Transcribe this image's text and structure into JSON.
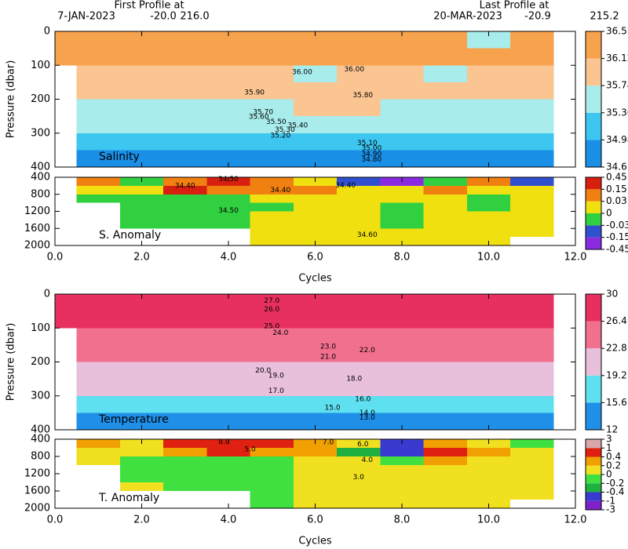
{
  "header": {
    "first": {
      "title": "First Profile at",
      "date": "7-JAN-2023",
      "lat": "-20.0",
      "lon": "216.0"
    },
    "last": {
      "title": "Last Profile at",
      "date": "20-MAR-2023",
      "lat": "-20.9",
      "lon": "215.2"
    }
  },
  "chart_data": [
    {
      "type": "heatmap",
      "label": "Salinity",
      "ylabel": "Pressure (dbar)",
      "y_inverted": true,
      "x": [
        0,
        1,
        2,
        3,
        4,
        5,
        6,
        7,
        8,
        9,
        10,
        11
      ],
      "xlim": [
        0,
        12
      ],
      "xticks": [
        0,
        2,
        4,
        6,
        8,
        10,
        12
      ],
      "ylim": [
        0,
        400
      ],
      "yticks": [
        0,
        100,
        200,
        300,
        400
      ],
      "y_edges": [
        0,
        50,
        100,
        150,
        200,
        250,
        300,
        350,
        400
      ],
      "values": [
        [
          36.3,
          36.3,
          36.25,
          36.3,
          36.3,
          36.3,
          36.2,
          36.35,
          36.3,
          36.2,
          35.7,
          36.3
        ],
        [
          36.2,
          36.2,
          36.2,
          36.25,
          36.2,
          36.2,
          36.15,
          36.2,
          36.2,
          36.2,
          36.2,
          36.2
        ],
        [
          null,
          36.1,
          36.05,
          36.05,
          36.1,
          36.0,
          35.7,
          36.0,
          36.0,
          35.7,
          36.0,
          36.0
        ],
        [
          null,
          36.0,
          36.0,
          36.0,
          35.95,
          35.95,
          36.0,
          36.0,
          35.95,
          36.0,
          35.95,
          35.95
        ],
        [
          null,
          35.7,
          35.7,
          35.7,
          35.7,
          35.7,
          35.8,
          35.8,
          35.7,
          35.7,
          35.7,
          35.7
        ],
        [
          null,
          35.5,
          35.5,
          35.5,
          35.5,
          35.5,
          35.5,
          35.5,
          35.5,
          35.5,
          35.5,
          35.5
        ],
        [
          null,
          35.2,
          35.2,
          35.2,
          35.2,
          35.2,
          35.2,
          35.2,
          35.2,
          35.2,
          35.2,
          35.2
        ],
        [
          null,
          34.95,
          34.95,
          34.95,
          34.95,
          34.95,
          34.95,
          34.95,
          34.95,
          34.95,
          34.95,
          34.95
        ]
      ],
      "colorbar": {
        "levels": [
          34.6,
          34.98,
          35.36,
          35.74,
          36.12,
          36.5
        ],
        "colors": [
          "#1a8fe6",
          "#3cc6f0",
          "#a8ecec",
          "#fbc592",
          "#f7a24c"
        ]
      },
      "contour_labels": [
        {
          "label": "36.00",
          "x": 5.7,
          "y": 120
        },
        {
          "label": "36.00",
          "x": 6.9,
          "y": 112
        },
        {
          "label": "35.90",
          "x": 4.6,
          "y": 180
        },
        {
          "label": "35.80",
          "x": 7.1,
          "y": 188
        },
        {
          "label": "35.70",
          "x": 4.8,
          "y": 238
        },
        {
          "label": "35.60",
          "x": 4.7,
          "y": 252
        },
        {
          "label": "35.50",
          "x": 5.1,
          "y": 267
        },
        {
          "label": "35.40",
          "x": 5.6,
          "y": 277
        },
        {
          "label": "35.30",
          "x": 5.3,
          "y": 290
        },
        {
          "label": "35.20",
          "x": 5.2,
          "y": 307
        },
        {
          "label": "35.10",
          "x": 7.2,
          "y": 330
        },
        {
          "label": "35.00",
          "x": 7.3,
          "y": 345
        },
        {
          "label": "34.90",
          "x": 7.3,
          "y": 362
        },
        {
          "label": "34.80",
          "x": 7.3,
          "y": 378
        }
      ]
    },
    {
      "type": "heatmap",
      "label": "S. Anomaly",
      "xlabel": "Cycles",
      "y_inverted": true,
      "x": [
        0,
        1,
        2,
        3,
        4,
        5,
        6,
        7,
        8,
        9,
        10,
        11
      ],
      "xlim": [
        0,
        12
      ],
      "xticks": [
        {
          "value": 0,
          "label": "0.0"
        },
        {
          "value": 2,
          "label": "2.0"
        },
        {
          "value": 4,
          "label": "4.0"
        },
        {
          "value": 6,
          "label": "6.0"
        },
        {
          "value": 8,
          "label": "8.0"
        },
        {
          "value": 10,
          "label": "10.0"
        },
        {
          "value": 12,
          "label": "12.0"
        }
      ],
      "ylim": [
        400,
        2000
      ],
      "yticks": [
        400,
        800,
        1200,
        1600,
        2000
      ],
      "y_edges": [
        400,
        600,
        800,
        1000,
        1200,
        1400,
        1600,
        1800,
        2000
      ],
      "values": [
        [
          null,
          0.05,
          -0.02,
          0.1,
          0.2,
          0.05,
          0.01,
          -0.1,
          -0.2,
          -0.02,
          0.05,
          -0.05
        ],
        [
          null,
          0.02,
          0.02,
          0.2,
          0.1,
          0.05,
          0.1,
          0.02,
          0.01,
          0.05,
          0.02,
          0.01
        ],
        [
          null,
          -0.02,
          -0.02,
          -0.02,
          -0.01,
          0.01,
          0.01,
          0.01,
          0.01,
          0.01,
          -0.01,
          0.01
        ],
        [
          null,
          null,
          -0.02,
          -0.02,
          -0.02,
          -0.01,
          0.01,
          0.01,
          -0.01,
          0.01,
          -0.01,
          0.01
        ],
        [
          null,
          null,
          -0.02,
          -0.02,
          -0.01,
          0.01,
          0.01,
          0.01,
          -0.01,
          0.01,
          0.01,
          0.01
        ],
        [
          null,
          null,
          -0.01,
          -0.02,
          -0.02,
          0.01,
          0.01,
          0.01,
          -0.01,
          0.01,
          0.01,
          0.01
        ],
        [
          null,
          null,
          null,
          null,
          null,
          0.01,
          0.01,
          0.01,
          0.01,
          0.01,
          0.01,
          0.01
        ],
        [
          null,
          null,
          null,
          null,
          null,
          0.01,
          0.01,
          0.01,
          0.01,
          0.01,
          0.01,
          null
        ]
      ],
      "colorbar": {
        "levels": [
          -0.45,
          -0.15,
          -0.03,
          0,
          0.03,
          0.15,
          0.45
        ],
        "colors": [
          "#8a2be2",
          "#3050d0",
          "#30d040",
          "#f0e010",
          "#f08010",
          "#d82010"
        ]
      },
      "contour_labels": [
        {
          "label": "34.50",
          "x": 4.0,
          "y": 450
        },
        {
          "label": "34.40",
          "x": 3.0,
          "y": 600
        },
        {
          "label": "34.40",
          "x": 5.2,
          "y": 700
        },
        {
          "label": "34.40",
          "x": 6.7,
          "y": 590
        },
        {
          "label": "34.50",
          "x": 4.0,
          "y": 1180
        },
        {
          "label": "34.60",
          "x": 7.2,
          "y": 1750
        }
      ]
    },
    {
      "type": "heatmap",
      "label": "Temperature",
      "ylabel": "Pressure (dbar)",
      "y_inverted": true,
      "x": [
        0,
        1,
        2,
        3,
        4,
        5,
        6,
        7,
        8,
        9,
        10,
        11
      ],
      "xlim": [
        0,
        12
      ],
      "xticks": [
        0,
        2,
        4,
        6,
        8,
        10,
        12
      ],
      "ylim": [
        0,
        400
      ],
      "yticks": [
        0,
        100,
        200,
        300,
        400
      ],
      "y_edges": [
        0,
        50,
        100,
        150,
        200,
        250,
        300,
        350,
        400
      ],
      "values": [
        [
          28.5,
          28,
          28,
          28,
          28,
          28,
          28,
          28.5,
          28.5,
          28.5,
          28,
          28.5
        ],
        [
          27,
          27,
          27,
          27,
          27,
          27,
          27,
          27,
          27,
          27,
          27,
          27
        ],
        [
          null,
          25.5,
          25.5,
          25.5,
          25.5,
          25,
          25,
          25.5,
          25.5,
          25,
          25,
          25
        ],
        [
          null,
          23.5,
          23.5,
          23.5,
          23.5,
          23,
          23,
          23.5,
          23.5,
          23.5,
          23,
          23.5
        ],
        [
          null,
          21,
          21,
          21,
          21,
          21,
          21,
          21,
          21,
          21,
          21,
          21
        ],
        [
          null,
          19.5,
          19.5,
          19.5,
          19.5,
          19.5,
          19.5,
          19.5,
          19.5,
          19.5,
          19.5,
          19.5
        ],
        [
          null,
          17,
          17,
          17,
          17,
          17,
          17,
          17,
          17,
          17,
          17,
          17
        ],
        [
          null,
          14.5,
          14.5,
          14.5,
          14.5,
          14.5,
          14.5,
          14.5,
          14.5,
          14.5,
          14.5,
          14.5
        ]
      ],
      "colorbar": {
        "levels": [
          12,
          15.6,
          19.2,
          22.8,
          26.4,
          30
        ],
        "colors": [
          "#1f8fe8",
          "#5ee0f0",
          "#e8c0dc",
          "#f0708e",
          "#e83060"
        ]
      },
      "contour_labels": [
        {
          "label": "27.0",
          "x": 5.0,
          "y": 20
        },
        {
          "label": "26.0",
          "x": 5.0,
          "y": 45
        },
        {
          "label": "25.0",
          "x": 5.0,
          "y": 95
        },
        {
          "label": "24.0",
          "x": 5.2,
          "y": 115
        },
        {
          "label": "23.0",
          "x": 6.3,
          "y": 155
        },
        {
          "label": "22.0",
          "x": 7.2,
          "y": 165
        },
        {
          "label": "21.0",
          "x": 6.3,
          "y": 185
        },
        {
          "label": "20.0",
          "x": 4.8,
          "y": 225
        },
        {
          "label": "19.0",
          "x": 5.1,
          "y": 240
        },
        {
          "label": "18.0",
          "x": 6.9,
          "y": 250
        },
        {
          "label": "17.0",
          "x": 5.1,
          "y": 285
        },
        {
          "label": "16.0",
          "x": 7.1,
          "y": 310
        },
        {
          "label": "15.0",
          "x": 6.4,
          "y": 335
        },
        {
          "label": "14.0",
          "x": 7.2,
          "y": 350
        },
        {
          "label": "13.0",
          "x": 7.2,
          "y": 364
        }
      ]
    },
    {
      "type": "heatmap",
      "label": "T. Anomaly",
      "xlabel": "Cycles",
      "y_inverted": true,
      "x": [
        0,
        1,
        2,
        3,
        4,
        5,
        6,
        7,
        8,
        9,
        10,
        11
      ],
      "xlim": [
        0,
        12
      ],
      "xticks": [
        {
          "value": 0,
          "label": "0.0"
        },
        {
          "value": 2,
          "label": "2.0"
        },
        {
          "value": 4,
          "label": "4.0"
        },
        {
          "value": 6,
          "label": "6.0"
        },
        {
          "value": 8,
          "label": "8.0"
        },
        {
          "value": 10,
          "label": "10.0"
        },
        {
          "value": 12,
          "label": "12.0"
        }
      ],
      "ylim": [
        400,
        2000
      ],
      "yticks": [
        400,
        800,
        1200,
        1600,
        2000
      ],
      "y_edges": [
        400,
        600,
        800,
        1000,
        1200,
        1400,
        1600,
        1800,
        2000
      ],
      "values": [
        [
          null,
          0.3,
          0.1,
          0.6,
          0.8,
          0.5,
          0.3,
          0.1,
          -0.5,
          0.3,
          0.1,
          -0.1
        ],
        [
          null,
          0.1,
          0.1,
          0.3,
          0.5,
          0.2,
          0.3,
          -0.3,
          -0.6,
          0.5,
          0.3,
          0.1
        ],
        [
          null,
          0.1,
          -0.1,
          -0.1,
          -0.1,
          -0.1,
          0.1,
          0.1,
          -0.1,
          0.3,
          0.1,
          0.1
        ],
        [
          null,
          null,
          -0.1,
          -0.1,
          -0.1,
          -0.1,
          0.1,
          0.1,
          0.1,
          0.1,
          0.1,
          0.1
        ],
        [
          null,
          null,
          -0.1,
          -0.1,
          -0.1,
          -0.1,
          0.1,
          0.1,
          0.1,
          0.1,
          0.1,
          0.1
        ],
        [
          null,
          null,
          0.1,
          -0.1,
          -0.1,
          -0.1,
          0.1,
          0.1,
          0.1,
          0.1,
          0.1,
          0.1
        ],
        [
          null,
          null,
          null,
          null,
          null,
          -0.1,
          0.1,
          0.1,
          0.1,
          0.1,
          0.1,
          0.1
        ],
        [
          null,
          null,
          null,
          null,
          null,
          -0.1,
          0.1,
          0.1,
          0.1,
          0.1,
          0.1,
          null
        ]
      ],
      "colorbar": {
        "levels": [
          -3,
          -1,
          -0.4,
          -0.2,
          0,
          0.2,
          0.4,
          1,
          3
        ],
        "colors": [
          "#8020c8",
          "#3a3ad0",
          "#20b040",
          "#40e040",
          "#f0e020",
          "#f0a000",
          "#e02010",
          "#d8a8a8"
        ]
      },
      "contour_labels": [
        {
          "label": "8.0",
          "x": 3.9,
          "y": 460
        },
        {
          "label": "7.0",
          "x": 6.3,
          "y": 470
        },
        {
          "label": "6.0",
          "x": 7.1,
          "y": 520
        },
        {
          "label": "5.0",
          "x": 4.5,
          "y": 640
        },
        {
          "label": "4.0",
          "x": 7.2,
          "y": 880
        },
        {
          "label": "3.0",
          "x": 7.0,
          "y": 1280
        }
      ]
    }
  ]
}
